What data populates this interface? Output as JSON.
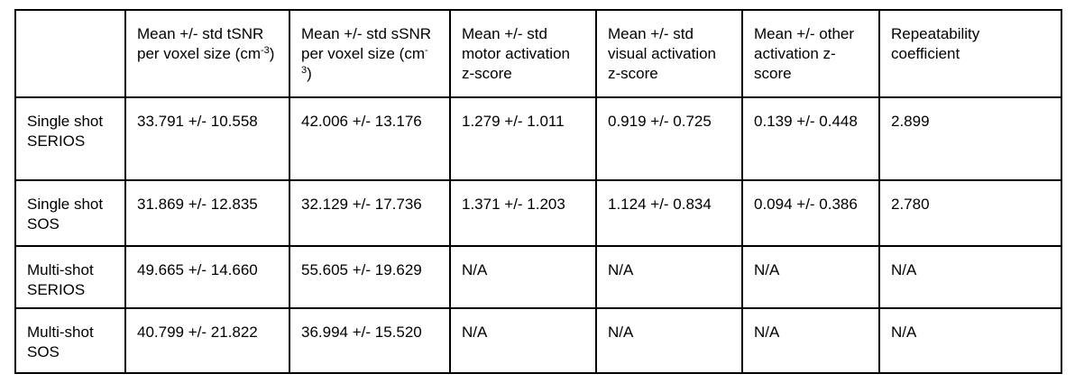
{
  "table": {
    "header": [
      {
        "text": "Mean +/- std tSNR per voxel size (cm",
        "sup": "-3",
        "tail": ")"
      },
      {
        "text": "Mean +/- std sSNR per voxel size (cm",
        "sup": "-3",
        "tail": ")"
      },
      {
        "text": "Mean +/- std motor activation z-score"
      },
      {
        "text": "Mean +/- std visual activation z-score"
      },
      {
        "text": "Mean +/- other activation z-score"
      },
      {
        "text": "Repeatability coefficient"
      }
    ],
    "rows": [
      [
        "Single shot SERIOS",
        "33.791 +/- 10.558",
        "42.006 +/- 13.176",
        "1.279 +/- 1.011",
        "0.919 +/- 0.725",
        "0.139 +/- 0.448",
        "2.899"
      ],
      [
        "Single shot SOS",
        "31.869 +/- 12.835",
        "32.129 +/- 17.736",
        "1.371 +/- 1.203",
        "1.124 +/- 0.834",
        "0.094 +/- 0.386",
        "2.780"
      ],
      [
        "Multi-shot SERIOS",
        "49.665 +/- 14.660",
        "55.605 +/- 19.629",
        "N/A",
        "N/A",
        "N/A",
        "N/A"
      ],
      [
        "Multi-shot SOS",
        "40.799 +/- 21.822",
        "36.994 +/- 15.520",
        "N/A",
        "N/A",
        "N/A",
        "N/A"
      ]
    ]
  }
}
